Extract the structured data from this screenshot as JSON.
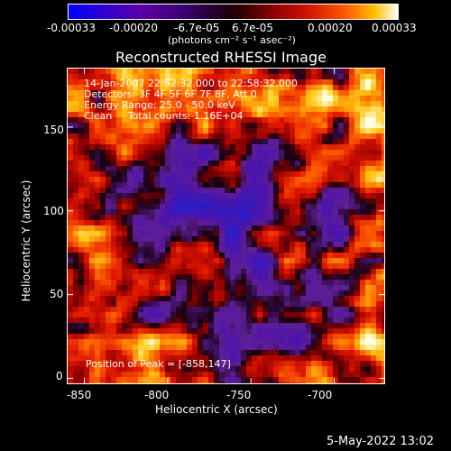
{
  "colorbar": {
    "tick_labels": [
      "-0.00033",
      "-0.00020",
      "-6.7e-05",
      "6.7e-05",
      "0.00020",
      "0.00033"
    ],
    "units": "(photons cm⁻² s⁻¹ asec⁻²)"
  },
  "plot": {
    "title": "Reconstructed RHESSI Image",
    "xlabel": "Heliocentric X (arcsec)",
    "ylabel": "Heliocentric Y (arcsec)",
    "x_ticks": [
      "-850",
      "-800",
      "-750",
      "-700"
    ],
    "y_ticks": [
      "0",
      "50",
      "100",
      "150"
    ],
    "xlim": [
      -860,
      -670
    ],
    "ylim": [
      -3,
      185
    ]
  },
  "info": {
    "line1": "14-Jan-2007 22:52:32.000 to 22:58:32.000",
    "line2": "Detectors: 3F 4F 5F 6F 7F 8F, Att 0",
    "line3": "Energy Range: 25.0 - 50.0 keV",
    "line4": "Clean     Total counts: 1.16E+04",
    "peak": "Position of Peak = [-858,147]"
  },
  "footer": {
    "timestamp": "5-May-2022 13:02"
  },
  "colors": {
    "negative": "#3a1fb0",
    "zero": "#000000",
    "positive": "#ff4000",
    "peak": "#ffffff"
  }
}
